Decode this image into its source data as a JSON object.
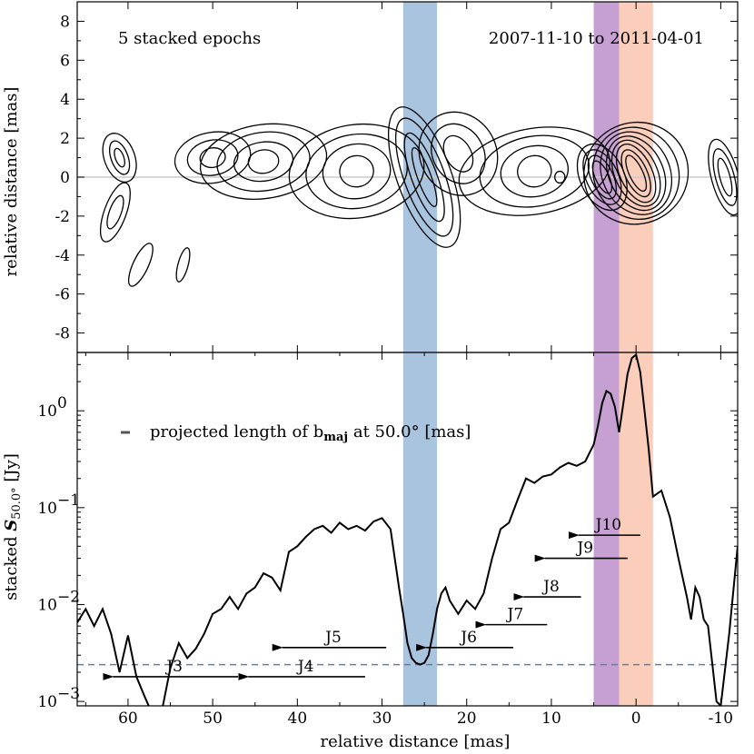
{
  "chart_data": [
    {
      "type": "contour",
      "annotation_left": "5 stacked epochs",
      "annotation_right": "2007-11-10 to 2011-04-01",
      "ylabel": "relative distance [mas]",
      "xlim": [
        66,
        -12
      ],
      "ylim": [
        -9,
        9
      ],
      "yticks": [
        8,
        6,
        4,
        2,
        0,
        -2,
        -4,
        -6,
        -8
      ],
      "bands": [
        {
          "from": 27.5,
          "to": 23.5,
          "color": "#a9c4de"
        },
        {
          "from": 5,
          "to": 2,
          "color": "#c7a0d3"
        },
        {
          "from": 2,
          "to": -2,
          "color": "#fbcdbb"
        }
      ],
      "ridge_line_y": 0,
      "contours": [
        {
          "cx": 0,
          "cy": 0.2,
          "rx": [
            0.8,
            1.3,
            1.9,
            2.5,
            3.2,
            4.0,
            5.0,
            6.2
          ],
          "ry": [
            1.0,
            1.3,
            1.6,
            1.8,
            2.0,
            2.2,
            2.4,
            2.6
          ],
          "rot": -25
        },
        {
          "cx": 4,
          "cy": 0.0,
          "rx": [
            0.8,
            1.3,
            1.9,
            2.6
          ],
          "ry": [
            0.9,
            1.2,
            1.5,
            1.8
          ],
          "rot": -25
        },
        {
          "cx": 12,
          "cy": 0.3,
          "rx": [
            2.0,
            4.0,
            6.5,
            9.0
          ],
          "ry": [
            0.8,
            1.3,
            1.8,
            2.2
          ],
          "rot": -10
        },
        {
          "cx": 21,
          "cy": 1.2,
          "rx": [
            1.5,
            3.0,
            4.5
          ],
          "ry": [
            1.0,
            1.6,
            2.2
          ],
          "rot": -30
        },
        {
          "cx": 25,
          "cy": 0.0,
          "rx": [
            0.8,
            1.5,
            2.4,
            3.2
          ],
          "ry": [
            1.6,
            2.4,
            3.2,
            3.8
          ],
          "rot": -20
        },
        {
          "cx": 33,
          "cy": 0.3,
          "rx": [
            2.0,
            4.0,
            6.0,
            8.0
          ],
          "ry": [
            0.8,
            1.4,
            1.9,
            2.4
          ],
          "rot": -8
        },
        {
          "cx": 44,
          "cy": 0.8,
          "rx": [
            1.8,
            3.5,
            5.5,
            7.5
          ],
          "ry": [
            0.6,
            1.0,
            1.5,
            1.9
          ],
          "rot": -8
        },
        {
          "cx": 50,
          "cy": 1.0,
          "rx": [
            1.5,
            3.0,
            4.5
          ],
          "ry": [
            0.5,
            0.9,
            1.3
          ],
          "rot": -10
        },
        {
          "cx": 61,
          "cy": 1.0,
          "rx": [
            0.5,
            1.0,
            1.8
          ],
          "ry": [
            0.5,
            0.9,
            1.3
          ],
          "rot": -20
        },
        {
          "cx": 61.5,
          "cy": -1.8,
          "rx": [
            0.7,
            1.3
          ],
          "ry": [
            0.9,
            1.6
          ],
          "rot": 20
        },
        {
          "cx": 58.5,
          "cy": -4.5,
          "rx": [
            0.9
          ],
          "ry": [
            1.2
          ],
          "rot": 25
        },
        {
          "cx": 53.5,
          "cy": -4.5,
          "rx": [
            0.6
          ],
          "ry": [
            0.9
          ],
          "rot": 15
        },
        {
          "cx": -10.5,
          "cy": 0.0,
          "rx": [
            0.6,
            1.1,
            1.6
          ],
          "ry": [
            1.0,
            1.5,
            2.0
          ],
          "rot": -15
        },
        {
          "cx": 9,
          "cy": 0.0,
          "rx": [
            0.6
          ],
          "ry": [
            0.3
          ],
          "rot": 0
        }
      ]
    },
    {
      "type": "line",
      "annotation": "projected length of b",
      "annotation_sub": "maj",
      "annotation_tail": " at 50.0° [mas]",
      "xlabel": "relative distance [mas]",
      "ylabel_main": "stacked ",
      "ylabel_italic": "S",
      "ylabel_sub": "50.0°",
      "ylabel_tail": " [Jy]",
      "xlim": [
        66,
        -12
      ],
      "ylim": [
        0.0009,
        4
      ],
      "yscale": "log",
      "xticks": [
        60,
        50,
        40,
        30,
        20,
        10,
        0,
        -10
      ],
      "xtick_labels": [
        "60",
        "50",
        "40",
        "30",
        "20",
        "10",
        "0",
        "-10"
      ],
      "yticks": [
        0.001,
        0.01,
        0.1,
        1
      ],
      "ytick_labels": [
        "10",
        "10",
        "10",
        "10"
      ],
      "ytick_exps": [
        "−3",
        "−2",
        "−1",
        "0"
      ],
      "threshold": 0.0024,
      "x": [
        66,
        65,
        64,
        63,
        62,
        61,
        60,
        59,
        58,
        57,
        56,
        55,
        54,
        53,
        52,
        51,
        50,
        49,
        48,
        47,
        46,
        45,
        44,
        43,
        42,
        41,
        40,
        39,
        38,
        37,
        36,
        35,
        34,
        33,
        32,
        31,
        30,
        29,
        28,
        27.5,
        27,
        26.5,
        26,
        25.5,
        25,
        24.5,
        24,
        23.5,
        23,
        22.5,
        22,
        21,
        20,
        19,
        18,
        17,
        16,
        15,
        14,
        13,
        12,
        11,
        10,
        9,
        8,
        7,
        6,
        5,
        4.5,
        4,
        3.5,
        3,
        2.5,
        2,
        1.5,
        1,
        0.5,
        0,
        -0.5,
        -1,
        -1.5,
        -2,
        -3,
        -4,
        -5,
        -6,
        -6.5,
        -7,
        -7.5,
        -8,
        -8.5,
        -9,
        -9.5,
        -10,
        -11,
        -12
      ],
      "values": [
        0.0065,
        0.009,
        0.006,
        0.009,
        0.005,
        0.002,
        0.0048,
        0.0018,
        0.0011,
        0.0007,
        0.0008,
        0.0022,
        0.004,
        0.0028,
        0.0035,
        0.005,
        0.008,
        0.009,
        0.012,
        0.009,
        0.013,
        0.015,
        0.021,
        0.019,
        0.014,
        0.035,
        0.04,
        0.05,
        0.06,
        0.065,
        0.055,
        0.07,
        0.06,
        0.065,
        0.058,
        0.072,
        0.078,
        0.06,
        0.015,
        0.008,
        0.004,
        0.0028,
        0.0025,
        0.0024,
        0.0025,
        0.003,
        0.005,
        0.009,
        0.013,
        0.015,
        0.011,
        0.008,
        0.011,
        0.009,
        0.013,
        0.03,
        0.06,
        0.07,
        0.12,
        0.2,
        0.18,
        0.21,
        0.22,
        0.26,
        0.29,
        0.27,
        0.3,
        0.45,
        0.7,
        1.2,
        1.6,
        1.5,
        1.1,
        0.6,
        1.2,
        2.4,
        3.5,
        3.8,
        2.5,
        1.0,
        0.4,
        0.13,
        0.15,
        0.08,
        0.03,
        0.012,
        0.007,
        0.015,
        0.012,
        0.007,
        0.006,
        0.0025,
        0.001,
        0.0009,
        0.005,
        0.04
      ],
      "arrows": [
        {
          "label": "J10",
          "from": -0.5,
          "to": 7,
          "y": 0.052
        },
        {
          "label": "J9",
          "from": 1.0,
          "to": 11,
          "y": 0.03
        },
        {
          "label": "J8",
          "from": 6.5,
          "to": 13.5,
          "y": 0.012
        },
        {
          "label": "J7",
          "from": 10.5,
          "to": 18,
          "y": 0.0062
        },
        {
          "label": "J6",
          "from": 14.5,
          "to": 25,
          "y": 0.0036
        },
        {
          "label": "J5",
          "from": 29.5,
          "to": 42,
          "y": 0.0036
        },
        {
          "label": "J4",
          "from": 32,
          "to": 46,
          "y": 0.0018
        },
        {
          "label": "J3",
          "from": 47,
          "to": 62,
          "y": 0.0018
        }
      ],
      "bands": [
        {
          "from": 27.5,
          "to": 23.5,
          "color": "#a9c4de"
        },
        {
          "from": 5,
          "to": 2,
          "color": "#c7a0d3"
        },
        {
          "from": 2,
          "to": -2,
          "color": "#fbcdbb"
        }
      ]
    }
  ]
}
